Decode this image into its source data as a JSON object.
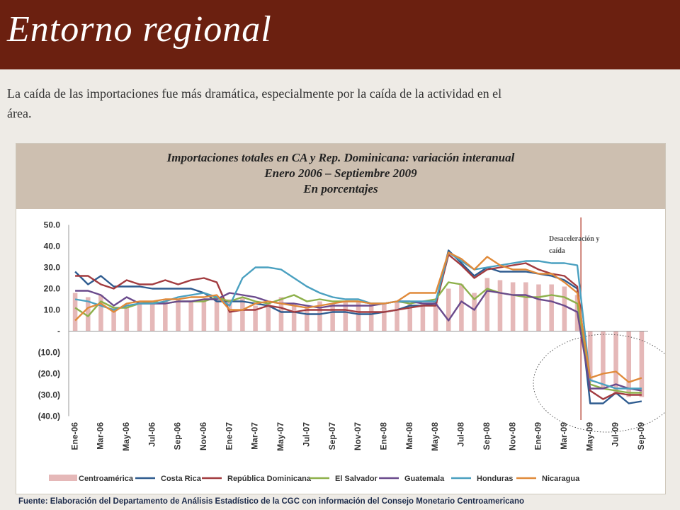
{
  "header": {
    "title": "Entorno regional"
  },
  "intro_text": "La caída de las importaciones fue más dramática, especialmente por la caída de la actividad en el área.",
  "source_text": "Fuente: Elaboración del Departamento de Análisis Estadístico de la CGC con información del Consejo Monetario Centroamericano",
  "chart_data": {
    "type": "bar+line",
    "title_lines": [
      "Importaciones totales en CA y Rep. Dominicana: variación interanual",
      "Enero 2006 – Septiembre 2009",
      "En porcentajes"
    ],
    "annotation": "Desaceleración y caída",
    "ylim": [
      -40,
      50
    ],
    "yticks": [
      50,
      40,
      30,
      20,
      10,
      0,
      -10,
      -20,
      -30,
      -40
    ],
    "ytick_labels": [
      "50.0",
      "40.0",
      "30.0",
      "20.0",
      "10.0",
      "-",
      "(10.0)",
      "(20.0)",
      "(30.0)",
      "(40.0)"
    ],
    "x_tick_labels": [
      "Ene-06",
      "Mar-06",
      "May-06",
      "Jul-06",
      "Sep-06",
      "Nov-06",
      "Ene-07",
      "Mar-07",
      "May-07",
      "Jul-07",
      "Sep-07",
      "Nov-07",
      "Ene-08",
      "Mar-08",
      "May-08",
      "Jul-08",
      "Sep-08",
      "Nov-08",
      "Ene-09",
      "Mar-09",
      "May-09",
      "Jul-09",
      "Sep-09"
    ],
    "n_periods": 45,
    "bar_series": {
      "name": "Centroamérica",
      "color": "#e5b8b8",
      "values": [
        18,
        16,
        17,
        11,
        13,
        14,
        14,
        15,
        15,
        14,
        15,
        16,
        15,
        16,
        12,
        13,
        16,
        13,
        12,
        14,
        13,
        14,
        14,
        13,
        13,
        14,
        13,
        13,
        14,
        20,
        22,
        18,
        25,
        24,
        23,
        23,
        22,
        22,
        21,
        17,
        -24,
        -27,
        -30,
        -31,
        -31
      ]
    },
    "series": [
      {
        "name": "Costa Rica",
        "color": "#2e5b8f",
        "values": [
          28,
          22,
          26,
          21,
          21,
          21,
          20,
          20,
          20,
          20,
          18,
          14,
          14,
          14,
          13,
          12,
          9,
          9,
          8,
          8,
          9,
          9,
          8,
          8,
          9,
          10,
          12,
          12,
          13,
          38,
          32,
          26,
          30,
          28,
          28,
          28,
          27,
          26,
          24,
          20,
          -34,
          -34,
          -29,
          -34,
          -33
        ]
      },
      {
        "name": "República Dominicana",
        "color": "#a23b3f",
        "values": [
          26,
          26,
          22,
          20,
          24,
          22,
          22,
          24,
          22,
          24,
          25,
          23,
          9,
          10,
          10,
          12,
          11,
          9,
          10,
          10,
          10,
          10,
          9,
          9,
          9,
          10,
          11,
          12,
          12,
          36,
          31,
          25,
          29,
          30,
          31,
          32,
          29,
          27,
          26,
          21,
          -28,
          -32,
          -29,
          -30,
          -30
        ]
      },
      {
        "name": "El Salvador",
        "color": "#8db04a",
        "values": [
          11,
          7,
          14,
          11,
          11,
          13,
          14,
          13,
          14,
          14,
          14,
          16,
          14,
          16,
          14,
          13,
          15,
          17,
          14,
          15,
          14,
          14,
          14,
          13,
          13,
          14,
          13,
          14,
          15,
          23,
          22,
          15,
          20,
          18,
          17,
          16,
          16,
          17,
          16,
          13,
          -25,
          -27,
          -28,
          -29,
          -29
        ]
      },
      {
        "name": "Guatemala",
        "color": "#6a4a8c",
        "values": [
          19,
          19,
          17,
          12,
          16,
          13,
          13,
          13,
          14,
          14,
          15,
          15,
          18,
          17,
          16,
          14,
          13,
          13,
          12,
          11,
          12,
          12,
          12,
          12,
          13,
          14,
          14,
          13,
          13,
          5,
          14,
          10,
          19,
          18,
          17,
          17,
          15,
          14,
          12,
          9,
          -27,
          -27,
          -25,
          -27,
          -28
        ]
      },
      {
        "name": "Honduras",
        "color": "#4aa0c0",
        "values": [
          15,
          14,
          12,
          10,
          12,
          13,
          13,
          14,
          16,
          17,
          18,
          16,
          12,
          25,
          30,
          30,
          29,
          25,
          21,
          18,
          16,
          15,
          15,
          13,
          13,
          14,
          14,
          14,
          14,
          37,
          33,
          29,
          30,
          31,
          32,
          33,
          33,
          32,
          32,
          31,
          -23,
          -25,
          -27,
          -27,
          -27
        ]
      },
      {
        "name": "Nicaragua",
        "color": "#e08a3a",
        "values": [
          5,
          11,
          13,
          9,
          13,
          14,
          14,
          15,
          15,
          16,
          16,
          17,
          10,
          10,
          13,
          14,
          13,
          12,
          11,
          12,
          13,
          14,
          14,
          13,
          13,
          14,
          18,
          18,
          18,
          37,
          34,
          29,
          35,
          31,
          29,
          29,
          27,
          27,
          23,
          18,
          -22,
          -20,
          -19,
          -24,
          -22
        ]
      }
    ],
    "legend_position": "bottom",
    "grid": false
  }
}
